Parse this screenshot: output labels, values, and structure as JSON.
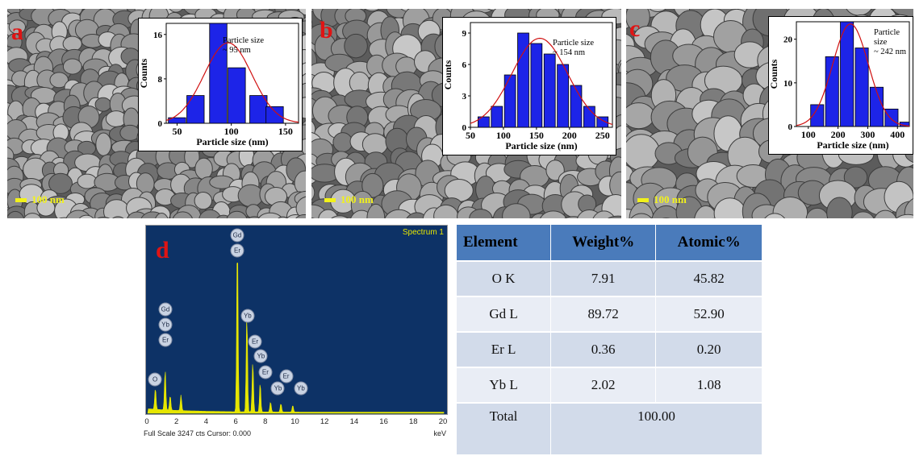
{
  "figure": {
    "panels": [
      {
        "id": "a",
        "letter": "a",
        "scale_bar": "100 nm",
        "inset_note_1": "Particle size",
        "inset_note_2": "~ 95 nm",
        "colors": {
          "bars": "#1d24e8",
          "fit": "#d01010"
        }
      },
      {
        "id": "b",
        "letter": "b",
        "scale_bar": "100 nm",
        "inset_note_1": "Particle size",
        "inset_note_2": "~ 154 nm",
        "colors": {
          "bars": "#1d24e8",
          "fit": "#d01010"
        }
      },
      {
        "id": "c",
        "letter": "c",
        "scale_bar": "100 nm",
        "inset_note_1": "Particle size",
        "inset_note_2": "~ 242 nm",
        "colors": {
          "bars": "#1d24e8",
          "fit": "#d01010"
        }
      }
    ],
    "eds": {
      "letter": "d",
      "spectrum_label": "Spectrum 1",
      "footer": "Full Scale 3247 cts Cursor: 0.000",
      "unit": "keV",
      "colors": {
        "background": "#0d3266",
        "spectrum": "#e6e600"
      }
    },
    "composition_table": {
      "headers": [
        "Element",
        "Weight%",
        "Atomic%"
      ],
      "rows": [
        {
          "element": "O K",
          "weight": "7.91",
          "atomic": "45.82"
        },
        {
          "element": "Gd L",
          "weight": "89.72",
          "atomic": "52.90"
        },
        {
          "element": "Er L",
          "weight": "0.36",
          "atomic": "0.20"
        },
        {
          "element": "Yb L",
          "weight": "2.02",
          "atomic": "1.08"
        }
      ],
      "total_label": "Total",
      "total_value": "100.00",
      "colors": {
        "header": "#4a7bbb",
        "row_dark": "#d2dbea",
        "row_light": "#e9edf5"
      }
    }
  },
  "chart_data": [
    {
      "type": "bar",
      "panel": "a",
      "xlabel": "Particle size (nm)",
      "ylabel": "Counts",
      "xlim": [
        40,
        162
      ],
      "ylim": [
        0,
        18
      ],
      "xticks": [
        50,
        100,
        150
      ],
      "yticks": [
        0,
        8,
        16
      ],
      "bin_width": 16,
      "x": [
        50,
        67,
        88,
        105,
        125,
        140
      ],
      "values": [
        1,
        5,
        18,
        10,
        5,
        3
      ],
      "fit": {
        "type": "gaussian",
        "mean": 97,
        "sd": 22,
        "peak": 14.5
      }
    },
    {
      "type": "bar",
      "panel": "b",
      "xlabel": "Particle size (nm)",
      "ylabel": "Counts",
      "xlim": [
        50,
        265
      ],
      "ylim": [
        0,
        10
      ],
      "xticks": [
        50,
        100,
        150,
        200,
        250
      ],
      "yticks": [
        0,
        3,
        6,
        9
      ],
      "bin_width": 17,
      "x": [
        70,
        90,
        110,
        130,
        150,
        170,
        190,
        210,
        230,
        250
      ],
      "values": [
        1,
        2,
        5,
        9,
        8,
        7,
        6,
        4,
        2,
        1
      ],
      "fit": {
        "type": "gaussian",
        "mean": 155,
        "sd": 42,
        "peak": 8.5
      }
    },
    {
      "type": "bar",
      "panel": "c",
      "xlabel": "Particle size (nm)",
      "ylabel": "Counts",
      "xlim": [
        60,
        440
      ],
      "ylim": [
        0,
        24
      ],
      "xticks": [
        100,
        200,
        300,
        400
      ],
      "yticks": [
        0,
        10,
        20
      ],
      "bin_width": 44,
      "x": [
        130,
        180,
        230,
        280,
        330,
        380,
        430
      ],
      "values": [
        5,
        16,
        24,
        18,
        9,
        4,
        1
      ],
      "fit": {
        "type": "gaussian",
        "mean": 242,
        "sd": 60,
        "peak": 23.5
      }
    },
    {
      "type": "line",
      "panel": "d",
      "xlabel": "keV",
      "ylabel": "",
      "xlim": [
        0,
        20
      ],
      "ylim": [
        0,
        3247
      ],
      "xticks": [
        0,
        2,
        4,
        6,
        8,
        10,
        12,
        14,
        16,
        18,
        20
      ],
      "peaks": [
        {
          "label": "O",
          "x": 0.52,
          "y": 380
        },
        {
          "label": "Gd",
          "x": 1.18,
          "y": 720
        },
        {
          "label": "Yb",
          "x": 1.52,
          "y": 260
        },
        {
          "label": "Gd",
          "x": 2.25,
          "y": 280
        },
        {
          "label": "Gd",
          "x": 6.06,
          "y": 3050
        },
        {
          "label": "Yb",
          "x": 6.7,
          "y": 1750
        },
        {
          "label": "Gd",
          "x": 7.1,
          "y": 900
        },
        {
          "label": "Er",
          "x": 7.6,
          "y": 520
        },
        {
          "label": "Yb",
          "x": 8.3,
          "y": 180
        },
        {
          "label": "Er",
          "x": 9.0,
          "y": 150
        },
        {
          "label": "Yb",
          "x": 9.8,
          "y": 120
        }
      ],
      "peak_labels": [
        {
          "text": "Gd",
          "x": 6.05,
          "y": 3140
        },
        {
          "text": "Er",
          "x": 6.05,
          "y": 2860
        },
        {
          "text": "Gd",
          "x": 1.2,
          "y": 1830
        },
        {
          "text": "Yb",
          "x": 1.2,
          "y": 1560
        },
        {
          "text": "Er",
          "x": 1.2,
          "y": 1290
        },
        {
          "text": "O",
          "x": 0.5,
          "y": 600
        },
        {
          "text": "Yb",
          "x": 6.75,
          "y": 1710
        },
        {
          "text": "Er",
          "x": 7.25,
          "y": 1260
        },
        {
          "text": "Yb",
          "x": 7.65,
          "y": 1000
        },
        {
          "text": "Er",
          "x": 7.95,
          "y": 720
        },
        {
          "text": "Yb",
          "x": 8.8,
          "y": 440
        },
        {
          "text": "Er",
          "x": 9.35,
          "y": 650
        },
        {
          "text": "Yb",
          "x": 10.35,
          "y": 440
        }
      ]
    }
  ]
}
